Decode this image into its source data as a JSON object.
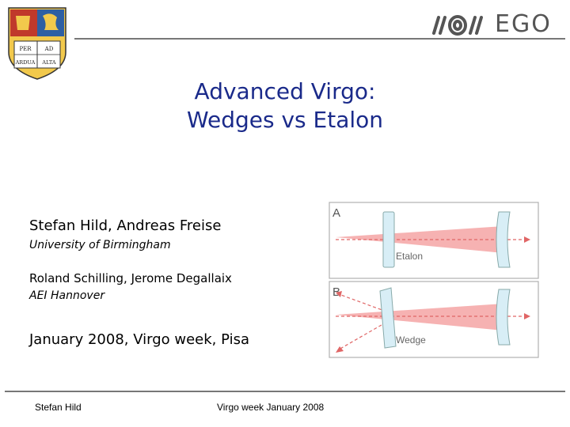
{
  "header": {
    "crest_name": "University of Birmingham crest",
    "crest_text": [
      "PER",
      "AD",
      "ARDUA",
      "ALTA"
    ],
    "logo_name": "EGO logo",
    "logo_text": "EGO"
  },
  "title": {
    "line1": "Advanced Virgo:",
    "line2": "Wedges vs Etalon"
  },
  "authors": {
    "names1": "Stefan Hild,  Andreas Freise",
    "inst1": "University of Birmingham",
    "names2": "Roland Schilling, Jerome Degallaix",
    "inst2": "AEI Hannover"
  },
  "date_line": "January 2008, Virgo week, Pisa",
  "figure": {
    "panel_a_label": "A",
    "panel_a_caption": "Etalon",
    "panel_b_label": "B",
    "panel_b_caption": "Wedge"
  },
  "footer": {
    "left": "Stefan Hild",
    "center": "Virgo week January 2008"
  },
  "colors": {
    "title": "#1a2a8a",
    "beam": "#f08080",
    "optic_fill": "#d8eef6",
    "panel_border": "#b0b0b0"
  }
}
